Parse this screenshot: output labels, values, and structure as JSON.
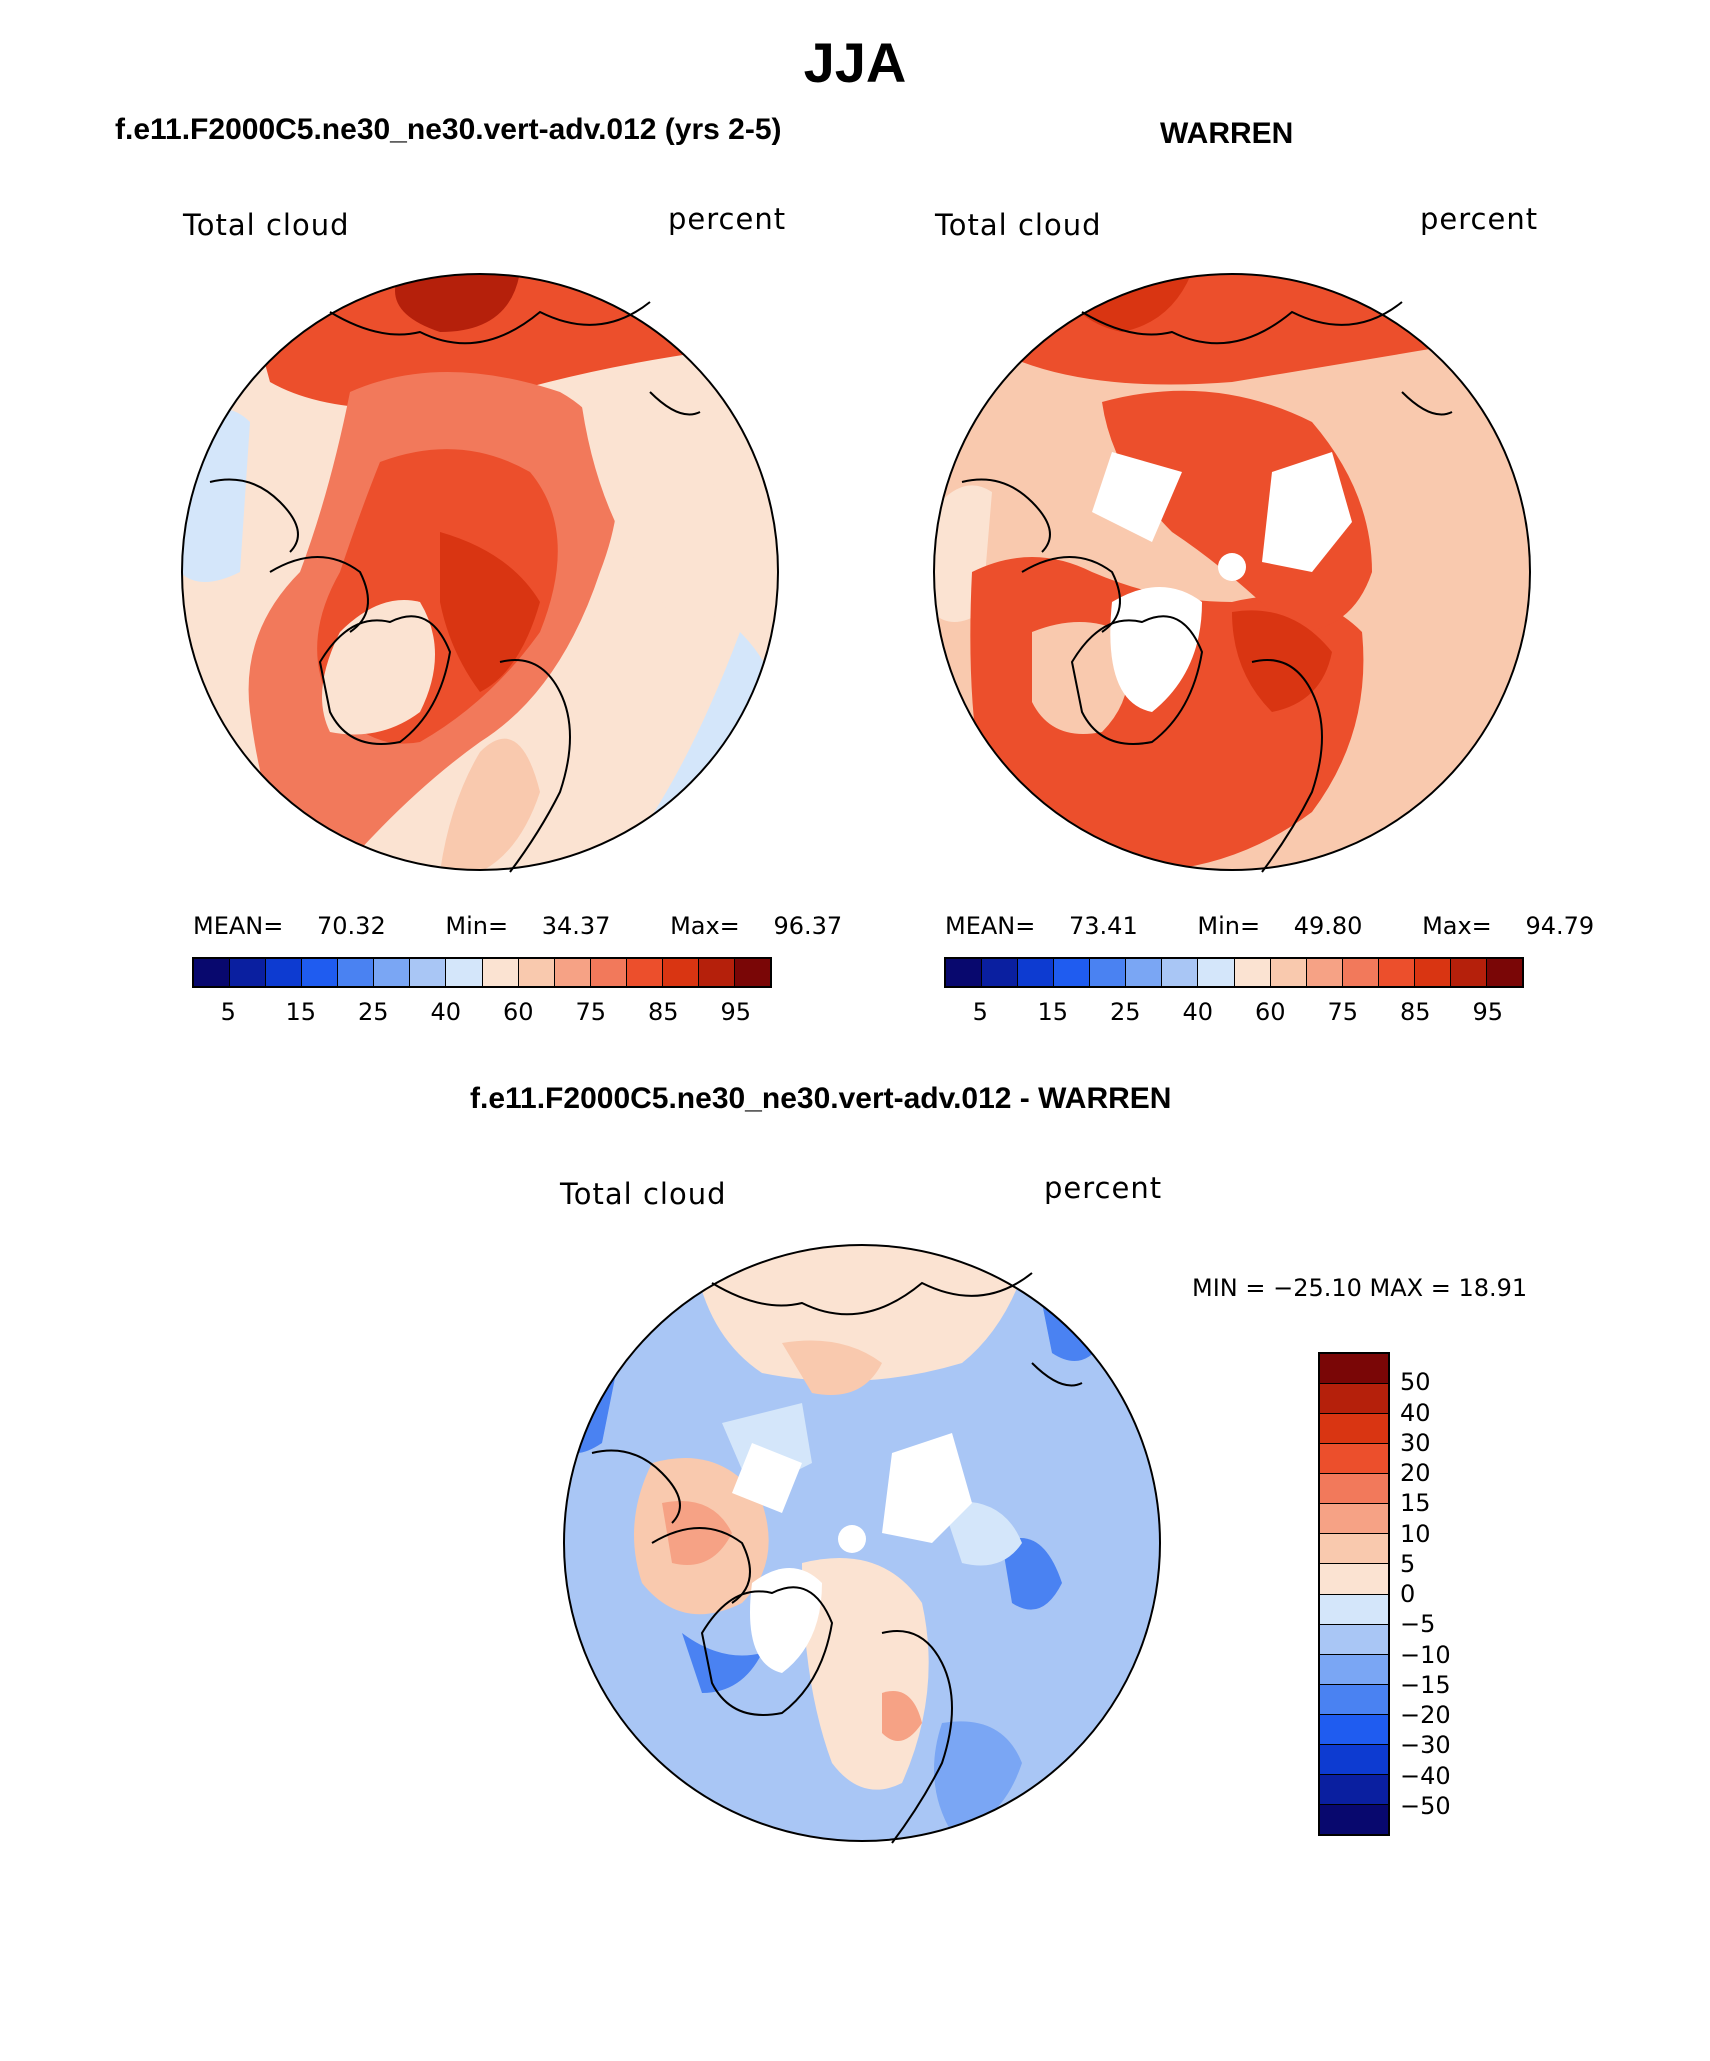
{
  "title": "JJA",
  "panels": [
    {
      "id": "model",
      "title": "f.e11.F2000C5.ne30_ne30.vert-adv.012 (yrs 2-5)",
      "left_label": "Total cloud",
      "right_label": "percent",
      "stats": {
        "mean_label": "MEAN=",
        "mean": "70.32",
        "min_label": "Min=",
        "min": "34.37",
        "max_label": "Max=",
        "max": "96.37"
      }
    },
    {
      "id": "obs",
      "title": "WARREN",
      "left_label": "Total cloud",
      "right_label": "percent",
      "stats": {
        "mean_label": "MEAN=",
        "mean": "73.41",
        "min_label": "Min=",
        "min": "49.80",
        "max_label": "Max=",
        "max": "94.79"
      }
    },
    {
      "id": "diff",
      "title": "f.e11.F2000C5.ne30_ne30.vert-adv.012 - WARREN",
      "left_label": "Total cloud",
      "right_label": "percent",
      "minmax": "MIN = −25.10 MAX =   18.91"
    }
  ],
  "abs_colorbar": {
    "colors": [
      "#08086e",
      "#0a1fa0",
      "#0d3bd1",
      "#1f5cf0",
      "#4a82f2",
      "#7aa6f4",
      "#a9c6f5",
      "#d4e6fa",
      "#fbe3d2",
      "#f9c9ae",
      "#f6a285",
      "#f2795b",
      "#ec4f2c",
      "#d93512",
      "#b5200b",
      "#7a0606"
    ],
    "tick_labels": [
      "5",
      "15",
      "25",
      "40",
      "60",
      "75",
      "85",
      "95"
    ]
  },
  "diff_colorbar": {
    "colors": [
      "#7a0606",
      "#b5200b",
      "#d93512",
      "#ec4f2c",
      "#f2795b",
      "#f6a285",
      "#f9c9ae",
      "#fbe3d2",
      "#d4e6fa",
      "#a9c6f5",
      "#7aa6f4",
      "#4a82f2",
      "#1f5cf0",
      "#0d3bd1",
      "#0a1fa0",
      "#08086e"
    ],
    "tick_labels": [
      "50",
      "40",
      "30",
      "20",
      "15",
      "10",
      "5",
      "0",
      "−5",
      "−10",
      "−15",
      "−20",
      "−30",
      "−40",
      "−50"
    ]
  }
}
